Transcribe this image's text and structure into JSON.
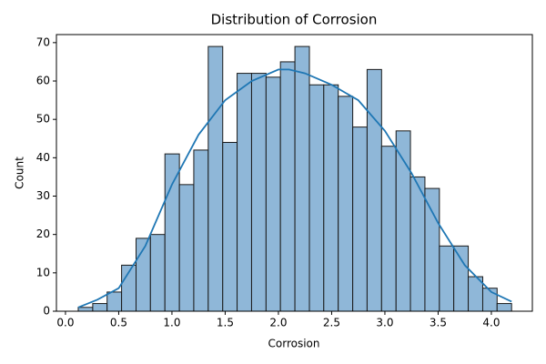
{
  "chart_data": {
    "type": "histogram",
    "title": "Distribution of Corrosion",
    "x_label": "Corrosion",
    "y_label": "Count",
    "bins": [
      0.12,
      0.256,
      0.391,
      0.527,
      0.663,
      0.798,
      0.934,
      1.07,
      1.205,
      1.341,
      1.477,
      1.612,
      1.748,
      1.884,
      2.019,
      2.155,
      2.291,
      2.426,
      2.562,
      2.698,
      2.833,
      2.969,
      3.105,
      3.24,
      3.376,
      3.512,
      3.647,
      3.783,
      3.919,
      4.054,
      4.19
    ],
    "counts": [
      1,
      2,
      5,
      12,
      19,
      20,
      41,
      33,
      42,
      69,
      44,
      62,
      62,
      61,
      65,
      69,
      59,
      59,
      56,
      48,
      63,
      43,
      47,
      35,
      32,
      17,
      17,
      9,
      6,
      2
    ],
    "color": "#8fb7d8",
    "edgecolor": "#1a1a1a",
    "kde": {
      "color": "#1f77b4",
      "x": [
        0.12,
        0.3,
        0.5,
        0.75,
        1.0,
        1.25,
        1.5,
        1.75,
        2.0,
        2.1,
        2.25,
        2.5,
        2.75,
        3.0,
        3.25,
        3.5,
        3.75,
        4.0,
        4.19
      ],
      "y": [
        1,
        3,
        6,
        17,
        33,
        46,
        55,
        60,
        63,
        63,
        62,
        59,
        55,
        47,
        36,
        23,
        12,
        5,
        2.5
      ]
    },
    "xlim": [
      -0.085,
      4.385
    ],
    "ylim": [
      0,
      72.1
    ],
    "xticks": [
      {
        "value": 0,
        "label": "0.0"
      },
      {
        "value": 0.5,
        "label": "0.5"
      },
      {
        "value": 1,
        "label": "1.0"
      },
      {
        "value": 1.5,
        "label": "1.5"
      },
      {
        "value": 2,
        "label": "2.0"
      },
      {
        "value": 2.5,
        "label": "2.5"
      },
      {
        "value": 3,
        "label": "3.0"
      },
      {
        "value": 3.5,
        "label": "3.5"
      },
      {
        "value": 4,
        "label": "4.0"
      }
    ],
    "yticks": [
      0,
      10,
      20,
      30,
      40,
      50,
      60,
      70
    ]
  }
}
